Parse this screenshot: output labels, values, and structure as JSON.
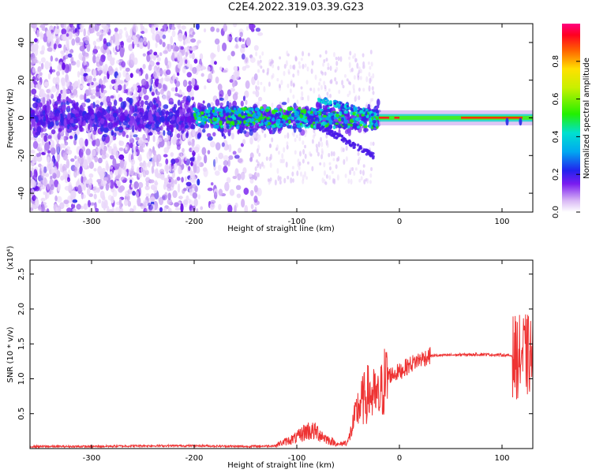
{
  "title": "C2E4.2022.319.03.39.G23",
  "chart_data": [
    {
      "type": "heatmap",
      "xlabel": "Height of straight line (km)",
      "ylabel": "Frequency (Hz)",
      "xlim": [
        -360,
        130
      ],
      "ylim": [
        -50,
        50
      ],
      "xticks": [
        -300,
        -200,
        -100,
        0,
        100
      ],
      "yticks": [
        -40,
        -20,
        0,
        20,
        40
      ],
      "colorbar": {
        "label": "Normalized spectral amplitude",
        "range": [
          0.0,
          1.0
        ],
        "ticks": [
          0.0,
          0.2,
          0.4,
          0.6,
          0.8
        ]
      }
    },
    {
      "type": "line",
      "xlabel": "Height of straight line (km)",
      "ylabel": "SNR (10 * v/v)",
      "y_multiplier": "(x10⁴)",
      "xlim": [
        -360,
        130
      ],
      "ylim": [
        0,
        2.7
      ],
      "xticks": [
        -300,
        -200,
        -100,
        0,
        100
      ],
      "yticks": [
        0.5,
        1.0,
        1.5,
        2.0,
        2.5
      ],
      "series": [
        {
          "color": "#ee3333",
          "x": [
            -360,
            -300,
            -250,
            -200,
            -150,
            -120,
            -100,
            -90,
            -80,
            -70,
            -60,
            -50,
            -40,
            -30,
            -20,
            -15,
            -10,
            0,
            10,
            20,
            30,
            50,
            80,
            100,
            110,
            115,
            120,
            125,
            130
          ],
          "y": [
            0.03,
            0.03,
            0.04,
            0.04,
            0.03,
            0.04,
            0.12,
            0.2,
            0.18,
            0.1,
            0.05,
            0.1,
            0.6,
            0.8,
            0.7,
            0.95,
            1.05,
            1.1,
            1.2,
            1.28,
            1.33,
            1.34,
            1.35,
            1.34,
            1.33,
            1.3,
            1.35,
            1.33,
            1.33
          ]
        }
      ]
    }
  ]
}
